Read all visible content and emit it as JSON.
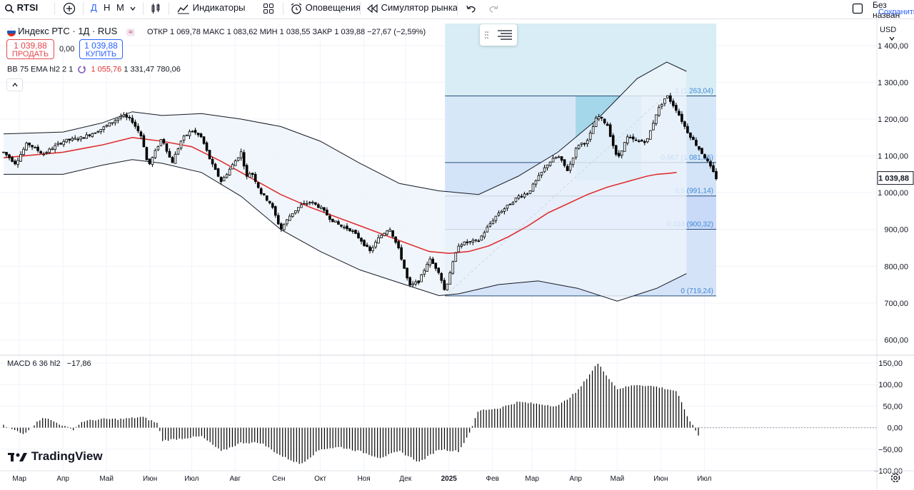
{
  "toolbar": {
    "symbol": "RTSI",
    "interval_d": "Д",
    "interval_w": "Н",
    "interval_m": "М",
    "indicators": "Индикаторы",
    "alerts": "Оповещения",
    "replay": "Симулятор рынка",
    "layout_name": "Без назван",
    "save": "Сохранить"
  },
  "header": {
    "title": "Индекс РТС · 1Д · RUS",
    "ohlc": "ОТКР 1 069,78  МАКС 1 083,62  МИН 1 038,55  ЗАКР 1 039,88  −27,67 (−2,59%)",
    "sell_price": "1 039,88",
    "sell_label": "ПРОДАТЬ",
    "spread": "0,00",
    "buy_price": "1 039,88",
    "buy_label": "КУПИТЬ",
    "bb_label": "BB 75 EMA hl2 2 1",
    "bb_basis": "1 055,76",
    "bb_upper": "1 331,47",
    "bb_lower": "780,06",
    "macd_label": "MACD 6 36 hl2",
    "macd_value": "−17,86",
    "currency": "USD",
    "brand": "TradingView"
  },
  "colors": {
    "candle": "#000000",
    "basis": "#e03131",
    "band": "#131722",
    "band_fill": "#eef4fb",
    "fib_top": "#d8edf5",
    "fib_mid": "#cfe2f7",
    "fib_low": "#c4d4f6",
    "fib_line": "#2b4f7c",
    "fib_text": "#3f8ad6",
    "macd": "#000000"
  },
  "chart_data": {
    "type": "candlestick",
    "title": "Индекс РТС · 1Д · RUS",
    "ylabel": "USD",
    "ylim": [
      560,
      1460
    ],
    "y_ticks": [
      {
        "v": 600,
        "l": "600,00"
      },
      {
        "v": 700,
        "l": "700,00"
      },
      {
        "v": 800,
        "l": "800,00"
      },
      {
        "v": 900,
        "l": "900,00"
      },
      {
        "v": 1000,
        "l": "1 000,00"
      },
      {
        "v": 1100,
        "l": "1 100,00"
      },
      {
        "v": 1200,
        "l": "1 200,00"
      },
      {
        "v": 1300,
        "l": "1 300,00"
      },
      {
        "v": 1400,
        "l": "1 400,00"
      }
    ],
    "last_price": {
      "v": 1039.88,
      "l": "1 039,88"
    },
    "x_ticks": [
      {
        "t": 0.8,
        "l": "Мар",
        "bold": false
      },
      {
        "t": 3.0,
        "l": "Апр",
        "bold": false
      },
      {
        "t": 5.2,
        "l": "Май",
        "bold": false
      },
      {
        "t": 7.4,
        "l": "Июн",
        "bold": false
      },
      {
        "t": 9.5,
        "l": "Июл",
        "bold": false
      },
      {
        "t": 11.7,
        "l": "Авг",
        "bold": false
      },
      {
        "t": 13.9,
        "l": "Сен",
        "bold": false
      },
      {
        "t": 16.0,
        "l": "Окт",
        "bold": false
      },
      {
        "t": 18.2,
        "l": "Ноя",
        "bold": false
      },
      {
        "t": 20.3,
        "l": "Дек",
        "bold": false
      },
      {
        "t": 22.5,
        "l": "2025",
        "bold": true
      },
      {
        "t": 24.7,
        "l": "Фев",
        "bold": false
      },
      {
        "t": 26.7,
        "l": "Мар",
        "bold": false
      },
      {
        "t": 28.9,
        "l": "Апр",
        "bold": false
      },
      {
        "t": 31.0,
        "l": "Май",
        "bold": false
      },
      {
        "t": 33.2,
        "l": "Июн",
        "bold": false
      },
      {
        "t": 35.4,
        "l": "Июл",
        "bold": false
      }
    ],
    "price_path": [
      [
        0,
        1110
      ],
      [
        0.6,
        1080
      ],
      [
        1.2,
        1135
      ],
      [
        2,
        1105
      ],
      [
        3,
        1140
      ],
      [
        4,
        1150
      ],
      [
        5,
        1175
      ],
      [
        6,
        1210
      ],
      [
        6.5,
        1195
      ],
      [
        7,
        1150
      ],
      [
        7.3,
        1070
      ],
      [
        8,
        1150
      ],
      [
        8.5,
        1080
      ],
      [
        9,
        1145
      ],
      [
        9.5,
        1170
      ],
      [
        10,
        1150
      ],
      [
        10.5,
        1080
      ],
      [
        11,
        1030
      ],
      [
        11.5,
        1070
      ],
      [
        12,
        1110
      ],
      [
        12.3,
        1040
      ],
      [
        12.5,
        1060
      ],
      [
        13,
        1000
      ],
      [
        13.5,
        970
      ],
      [
        14,
        900
      ],
      [
        14.5,
        940
      ],
      [
        15,
        965
      ],
      [
        15.5,
        975
      ],
      [
        16,
        960
      ],
      [
        16.5,
        930
      ],
      [
        17,
        910
      ],
      [
        17.5,
        900
      ],
      [
        18,
        875
      ],
      [
        18.5,
        840
      ],
      [
        19,
        880
      ],
      [
        19.5,
        905
      ],
      [
        20,
        840
      ],
      [
        20.5,
        745
      ],
      [
        21,
        760
      ],
      [
        21.5,
        820
      ],
      [
        22,
        785
      ],
      [
        22.3,
        730
      ],
      [
        22.5,
        775
      ],
      [
        23,
        860
      ],
      [
        24,
        870
      ],
      [
        24.5,
        910
      ],
      [
        25,
        945
      ],
      [
        25.5,
        965
      ],
      [
        26,
        990
      ],
      [
        26.5,
        1000
      ],
      [
        27,
        1040
      ],
      [
        27.5,
        1080
      ],
      [
        28,
        1100
      ],
      [
        28.5,
        1060
      ],
      [
        29,
        1130
      ],
      [
        29.5,
        1140
      ],
      [
        30,
        1210
      ],
      [
        30.5,
        1185
      ],
      [
        31,
        1090
      ],
      [
        31.5,
        1150
      ],
      [
        32,
        1140
      ],
      [
        32.5,
        1140
      ],
      [
        33,
        1220
      ],
      [
        33.5,
        1265
      ],
      [
        34,
        1225
      ],
      [
        34.5,
        1170
      ],
      [
        35,
        1130
      ],
      [
        35.5,
        1090
      ],
      [
        36,
        1040
      ]
    ],
    "ema_basis": [
      [
        0,
        1095
      ],
      [
        3,
        1110
      ],
      [
        5,
        1130
      ],
      [
        6.5,
        1150
      ],
      [
        8,
        1140
      ],
      [
        9.5,
        1125
      ],
      [
        11,
        1085
      ],
      [
        12.5,
        1040
      ],
      [
        14,
        995
      ],
      [
        15.5,
        960
      ],
      [
        17,
        930
      ],
      [
        18.5,
        900
      ],
      [
        20,
        870
      ],
      [
        21.5,
        840
      ],
      [
        22.5,
        835
      ],
      [
        23.5,
        840
      ],
      [
        24.5,
        855
      ],
      [
        25.5,
        880
      ],
      [
        26.5,
        910
      ],
      [
        27.5,
        945
      ],
      [
        28.5,
        970
      ],
      [
        29.5,
        995
      ],
      [
        30.5,
        1015
      ],
      [
        31.5,
        1030
      ],
      [
        32.5,
        1045
      ],
      [
        33,
        1050
      ],
      [
        33.5,
        1052
      ],
      [
        34,
        1055
      ]
    ],
    "bb_upper": [
      [
        0,
        1160
      ],
      [
        3,
        1165
      ],
      [
        5,
        1190
      ],
      [
        6.5,
        1220
      ],
      [
        8,
        1210
      ],
      [
        10,
        1215
      ],
      [
        12,
        1200
      ],
      [
        14,
        1180
      ],
      [
        16,
        1140
      ],
      [
        18,
        1080
      ],
      [
        20,
        1025
      ],
      [
        22,
        1005
      ],
      [
        24,
        995
      ],
      [
        26,
        1045
      ],
      [
        28,
        1110
      ],
      [
        30,
        1200
      ],
      [
        32,
        1310
      ],
      [
        33.5,
        1355
      ],
      [
        34.5,
        1330
      ]
    ],
    "bb_lower": [
      [
        0,
        1050
      ],
      [
        3,
        1050
      ],
      [
        5,
        1075
      ],
      [
        6.5,
        1090
      ],
      [
        8,
        1080
      ],
      [
        10,
        1055
      ],
      [
        12,
        990
      ],
      [
        14,
        900
      ],
      [
        16,
        840
      ],
      [
        18,
        790
      ],
      [
        20,
        755
      ],
      [
        22,
        720
      ],
      [
        23,
        725
      ],
      [
        25,
        750
      ],
      [
        27,
        760
      ],
      [
        29,
        740
      ],
      [
        31,
        705
      ],
      [
        33,
        740
      ],
      [
        34.5,
        780
      ]
    ],
    "fib": {
      "x_start": 22.3,
      "x_end": 36.0,
      "levels": [
        {
          "ratio": "1",
          "v": 1263.04,
          "l": "1 (1 263,04)"
        },
        {
          "ratio": "0,667",
          "v": 1081.95,
          "l": "0,667 (1 081,95)"
        },
        {
          "ratio": "0,5",
          "v": 991.14,
          "l": "0,5 (991,14)"
        },
        {
          "ratio": "0,333",
          "v": 900.32,
          "l": "0,333 (900,32)"
        },
        {
          "ratio": "0",
          "v": 719.24,
          "l": "0 (719,24)"
        }
      ]
    },
    "cyan_box": {
      "x0": 22.3,
      "x1": 36.0,
      "top_price": 1460
    },
    "teal_box": {
      "x0": 28.9,
      "x1": 32.2,
      "y0": 1033,
      "y1": 1263
    },
    "trend_line": [
      [
        22.3,
        719
      ],
      [
        33.4,
        1263
      ]
    ],
    "macd": {
      "ylim": [
        -100,
        165
      ],
      "y_ticks": [
        {
          "v": 150,
          "l": "150,00"
        },
        {
          "v": 100,
          "l": "100,00"
        },
        {
          "v": 50,
          "l": "50,00"
        },
        {
          "v": 0,
          "l": "0,00"
        },
        {
          "v": -50,
          "l": "−50,00"
        },
        {
          "v": -100,
          "l": "−100,00"
        }
      ],
      "path": [
        [
          0,
          5
        ],
        [
          1,
          -15
        ],
        [
          2,
          25
        ],
        [
          3,
          5
        ],
        [
          3.5,
          -5
        ],
        [
          4,
          15
        ],
        [
          5,
          20
        ],
        [
          6,
          20
        ],
        [
          7,
          25
        ],
        [
          7.8,
          10
        ],
        [
          8,
          -30
        ],
        [
          9,
          -25
        ],
        [
          10,
          -20
        ],
        [
          11,
          -55
        ],
        [
          12,
          -35
        ],
        [
          13,
          -35
        ],
        [
          14,
          -65
        ],
        [
          15,
          -85
        ],
        [
          16,
          -50
        ],
        [
          17,
          -45
        ],
        [
          18,
          -55
        ],
        [
          19,
          -70
        ],
        [
          20,
          -55
        ],
        [
          21,
          -80
        ],
        [
          22,
          -50
        ],
        [
          23,
          -55
        ],
        [
          23.5,
          -15
        ],
        [
          24,
          40
        ],
        [
          25,
          45
        ],
        [
          26,
          60
        ],
        [
          27,
          55
        ],
        [
          28,
          50
        ],
        [
          29,
          85
        ],
        [
          30,
          150
        ],
        [
          31,
          90
        ],
        [
          32,
          100
        ],
        [
          33,
          95
        ],
        [
          34,
          85
        ],
        [
          34.5,
          30
        ],
        [
          35.1,
          -17.86
        ]
      ]
    },
    "x_domain": [
      0,
      36.5
    ]
  }
}
